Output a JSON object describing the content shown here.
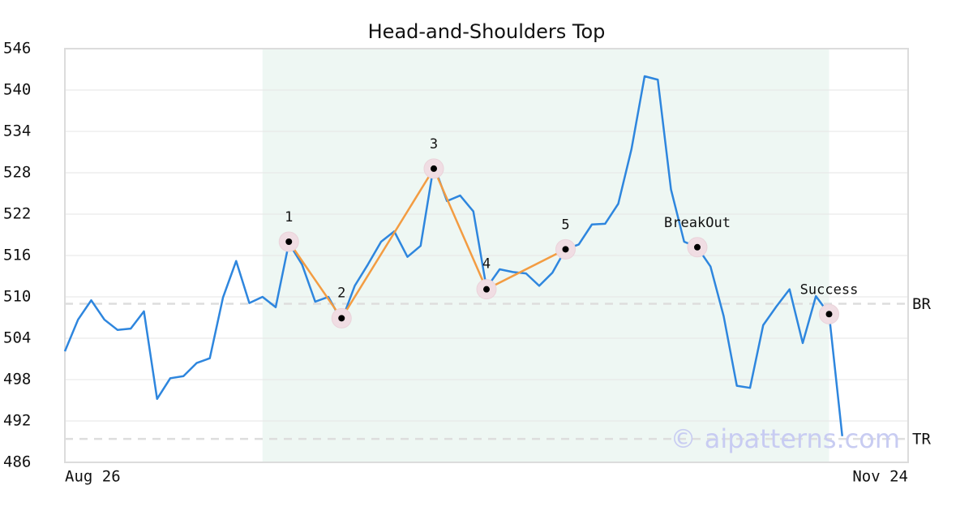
{
  "chart_data": {
    "type": "line",
    "title": "Head-and-Shoulders Top",
    "categories": [
      "Aug 26",
      null,
      null,
      null,
      null,
      null,
      null,
      null,
      null,
      null,
      null,
      null,
      null,
      null,
      null,
      null,
      null,
      null,
      null,
      null,
      null,
      null,
      null,
      null,
      null,
      null,
      null,
      null,
      null,
      null,
      null,
      null,
      null,
      null,
      null,
      null,
      null,
      null,
      null,
      null,
      null,
      null,
      null,
      null,
      null,
      null,
      null,
      null,
      null,
      null,
      null,
      null,
      null,
      null,
      null,
      null,
      null,
      null,
      null,
      null,
      null,
      null,
      null,
      null,
      "Nov 24"
    ],
    "values": [
      502.1,
      506.7,
      509.5,
      506.7,
      505.2,
      505.4,
      507.9,
      495.2,
      498.2,
      498.5,
      500.4,
      501.1,
      509.9,
      515.2,
      509.1,
      510.0,
      508.5,
      517.8,
      514.7,
      509.3,
      510.0,
      506.5,
      511.6,
      514.7,
      518.0,
      519.5,
      515.8,
      517.4,
      529.1,
      523.9,
      524.7,
      522.4,
      511.3,
      514.0,
      513.6,
      513.4,
      511.6,
      513.5,
      516.9,
      517.6,
      520.5,
      520.6,
      523.5,
      531.4,
      542.0,
      541.5,
      525.6,
      518.0,
      517.2,
      514.4,
      507.2,
      497.1,
      496.8,
      505.9,
      508.6,
      511.1,
      503.3,
      510.1,
      507.5,
      489.8,
      null,
      null,
      null,
      null,
      null
    ],
    "color": "#2e86de",
    "ylim": [
      486,
      546
    ],
    "yticks": [
      486,
      492,
      498,
      504,
      510,
      516,
      522,
      528,
      534,
      540,
      546
    ],
    "grid": true,
    "highlight": [
      15,
      58
    ],
    "highlight_color": "#eef7f3",
    "pattern_color": "#f39c42",
    "pattern": [
      {
        "label": "1",
        "x": 17,
        "value": 518.0
      },
      {
        "label": "2",
        "x": 21,
        "value": 506.9
      },
      {
        "label": "3",
        "x": 28,
        "value": 528.6
      },
      {
        "label": "4",
        "x": 32,
        "value": 511.1
      },
      {
        "label": "5",
        "x": 38,
        "value": 516.9
      }
    ],
    "events": [
      {
        "label": "BreakOut",
        "x": 48,
        "value": 517.2
      },
      {
        "label": "Success",
        "x": 58,
        "value": 507.5
      }
    ],
    "levels": [
      {
        "label": "BR",
        "value": 509.0
      },
      {
        "label": "TR",
        "value": 489.4
      }
    ],
    "watermark": "© aipatterns.com"
  }
}
